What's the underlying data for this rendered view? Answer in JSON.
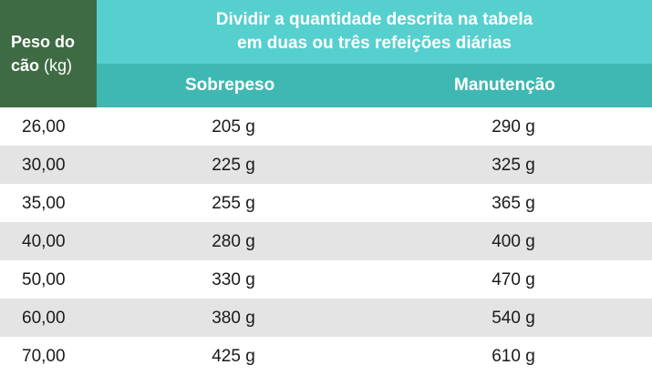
{
  "header": {
    "weight_label_bold_1": "Peso do",
    "weight_label_bold_2": "cão",
    "weight_label_unit": "(kg)",
    "instruction_line1": "Dividir a quantidade descrita na tabela",
    "instruction_line2": "em duas ou três refeições diárias",
    "col_overweight": "Sobrepeso",
    "col_maintenance": "Manutenção"
  },
  "rows": [
    {
      "weight": "26,00",
      "overweight": "205 g",
      "maintenance": "290 g"
    },
    {
      "weight": "30,00",
      "overweight": "225 g",
      "maintenance": "325 g"
    },
    {
      "weight": "35,00",
      "overweight": "255 g",
      "maintenance": "365 g"
    },
    {
      "weight": "40,00",
      "overweight": "280 g",
      "maintenance": "400 g"
    },
    {
      "weight": "50,00",
      "overweight": "330 g",
      "maintenance": "470 g"
    },
    {
      "weight": "60,00",
      "overweight": "380 g",
      "maintenance": "540 g"
    },
    {
      "weight": "70,00",
      "overweight": "425 g",
      "maintenance": "610 g"
    }
  ],
  "colors": {
    "corner_green": "#3f6b44",
    "header_teal_light": "#56cfcf",
    "header_teal_dark": "#3fb8b4",
    "row_alt_gray": "#e4e4e4"
  }
}
